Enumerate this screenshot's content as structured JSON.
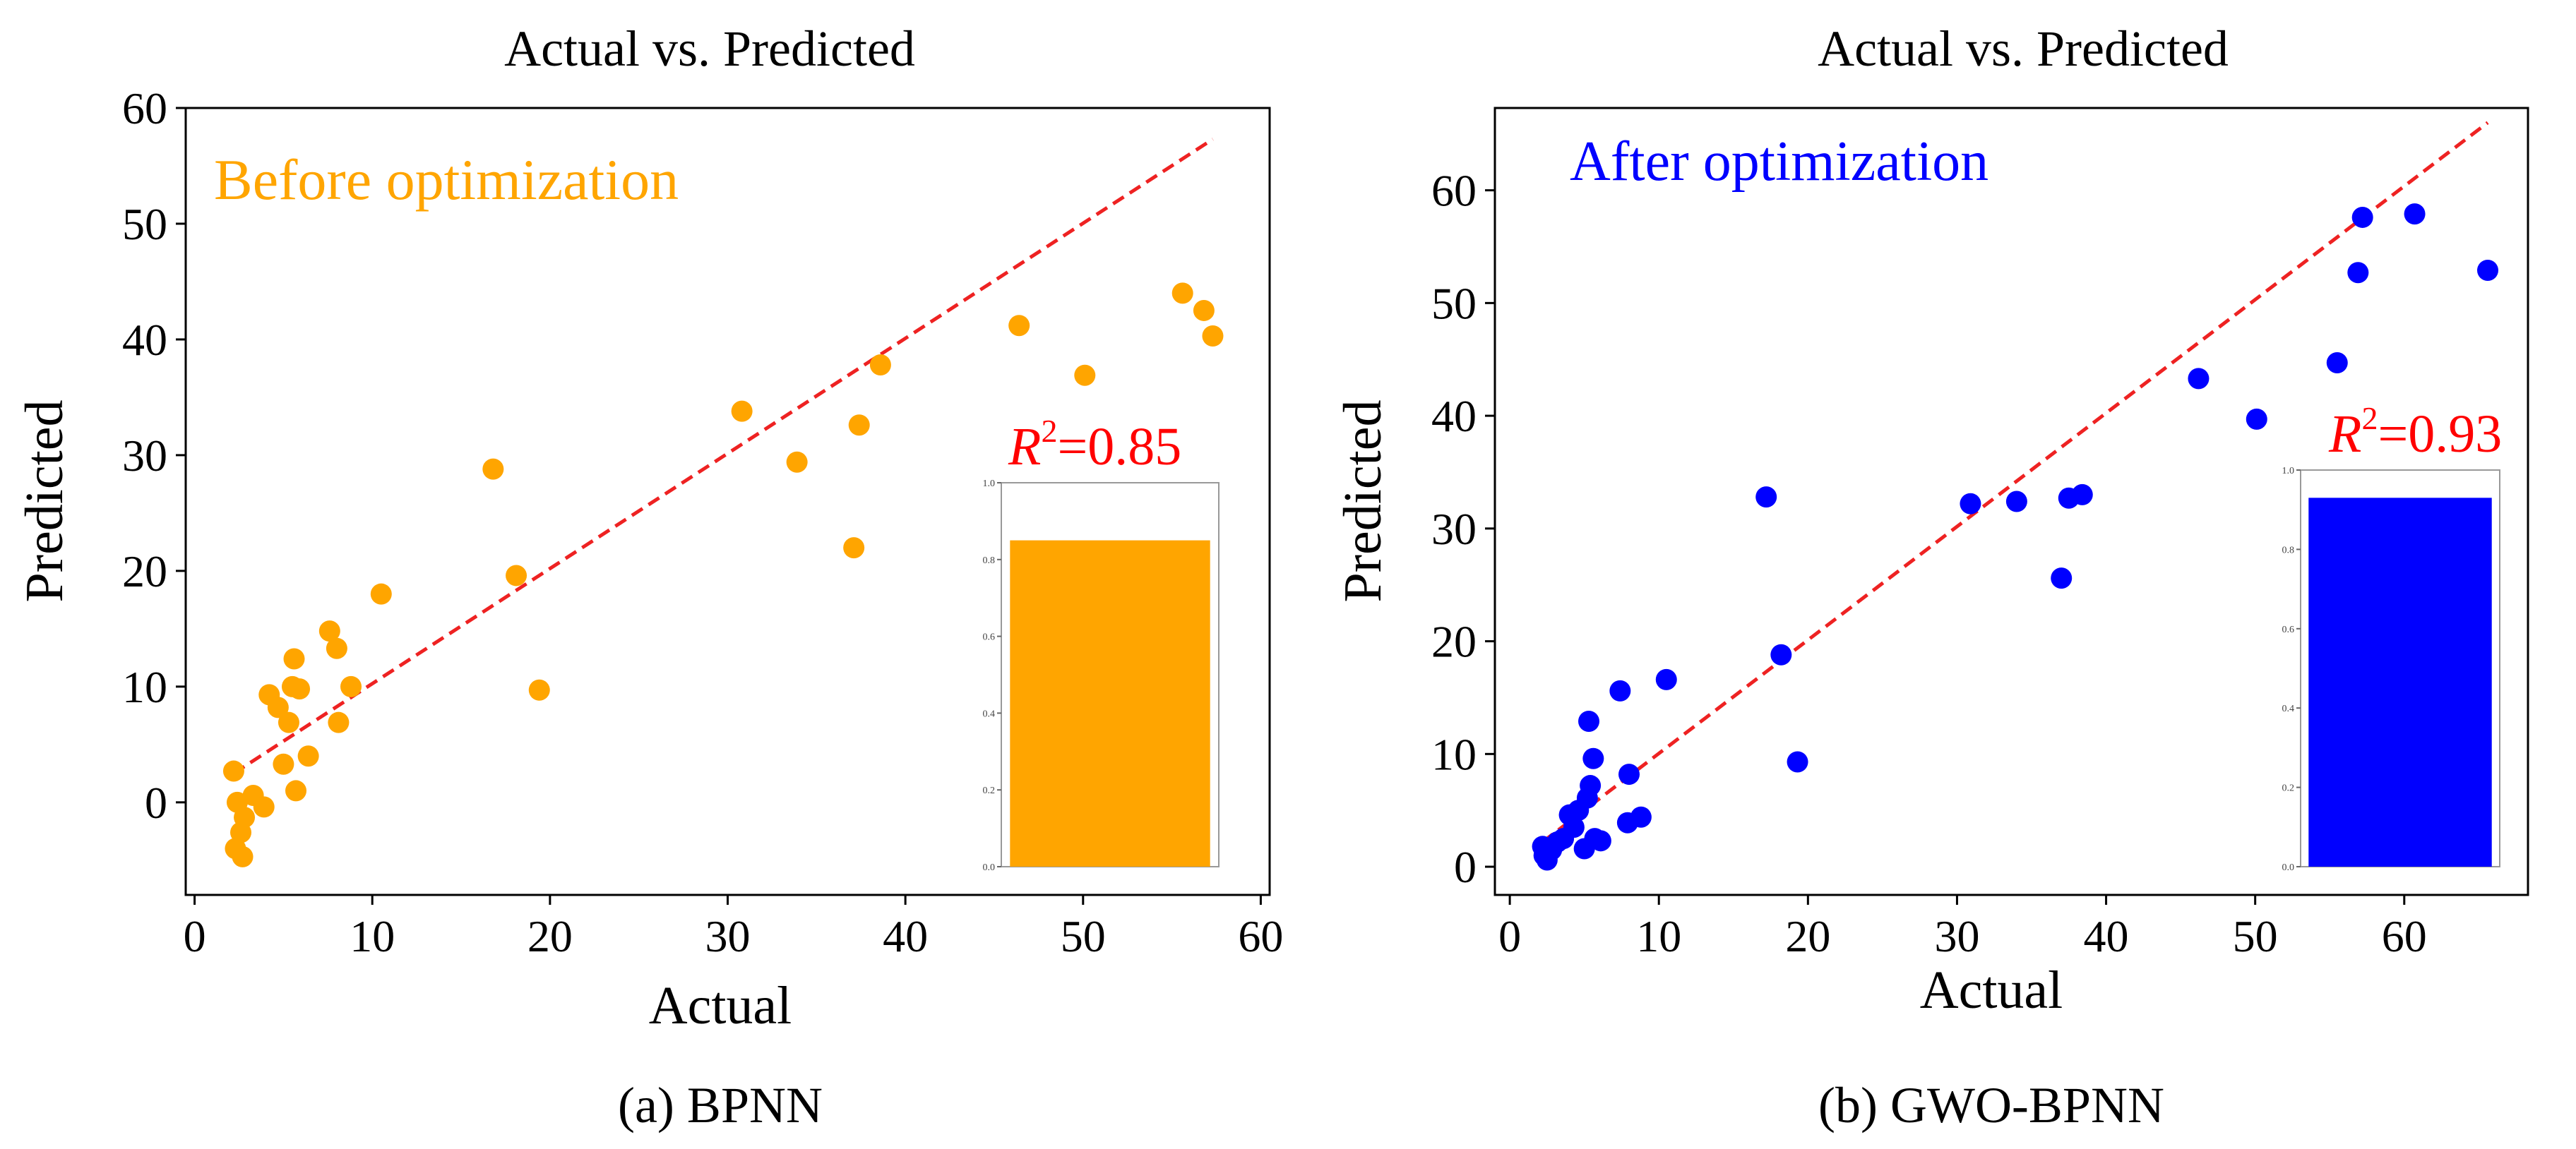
{
  "chart_data": [
    {
      "id": "a",
      "type": "scatter",
      "title": "Actual vs. Predicted",
      "xlabel": "Actual",
      "ylabel": "Predicted",
      "xlim": [
        -0.5,
        60.5
      ],
      "ylim": [
        -8,
        60
      ],
      "xticks": [
        "0",
        "10",
        "20",
        "30",
        "40",
        "50",
        "60"
      ],
      "xtick_values": [
        0,
        10,
        20,
        30,
        40,
        50,
        60
      ],
      "yticks": [
        "0",
        "10",
        "20",
        "30",
        "40",
        "50",
        "60"
      ],
      "ytick_values": [
        0,
        10,
        20,
        30,
        40,
        50,
        60
      ],
      "annotation": "Before optimization",
      "point_color": "#FFA500",
      "annotation_color": "#FFA500",
      "fit_line_color": "#EE2222",
      "fit_line": [
        [
          2.2,
          2.5
        ],
        [
          57.3,
          57.3
        ]
      ],
      "points": [
        [
          2.2,
          2.7
        ],
        [
          2.3,
          -4.0
        ],
        [
          2.4,
          0.0
        ],
        [
          2.6,
          -2.6
        ],
        [
          2.7,
          -4.7
        ],
        [
          2.8,
          -1.3
        ],
        [
          3.3,
          0.6
        ],
        [
          3.9,
          -0.4
        ],
        [
          4.2,
          9.3
        ],
        [
          4.7,
          8.2
        ],
        [
          5.0,
          3.3
        ],
        [
          5.3,
          6.9
        ],
        [
          5.5,
          10.0
        ],
        [
          5.6,
          12.4
        ],
        [
          5.7,
          1.0
        ],
        [
          5.9,
          9.8
        ],
        [
          6.4,
          4.0
        ],
        [
          7.6,
          14.8
        ],
        [
          8.0,
          13.3
        ],
        [
          8.1,
          6.9
        ],
        [
          8.8,
          10.0
        ],
        [
          10.5,
          18.0
        ],
        [
          16.8,
          28.8
        ],
        [
          18.1,
          19.6
        ],
        [
          19.4,
          9.7
        ],
        [
          30.8,
          33.8
        ],
        [
          33.9,
          29.4
        ],
        [
          37.1,
          22.0
        ],
        [
          37.4,
          32.6
        ],
        [
          38.6,
          37.8
        ],
        [
          46.4,
          41.2
        ],
        [
          50.1,
          36.9
        ],
        [
          55.6,
          44.0
        ],
        [
          56.8,
          42.5
        ],
        [
          57.3,
          40.3
        ]
      ],
      "inset": {
        "label_prefix": "R",
        "label_sup": "2",
        "label_suffix": "=0.85",
        "label_color": "#FF0000",
        "value": 0.85,
        "bar_color": "#FFA500",
        "yticks": [
          "0.0",
          "0.2",
          "0.4",
          "0.6",
          "0.8",
          "1.0"
        ]
      },
      "caption_letter": "(a)",
      "caption_text": " BPNN"
    },
    {
      "id": "b",
      "type": "scatter",
      "title": "Actual vs. Predicted",
      "xlabel": "Actual",
      "ylabel": "Predicted",
      "xlim": [
        -1,
        68.3
      ],
      "ylim": [
        -2.5,
        67.3
      ],
      "xticks": [
        "0",
        "10",
        "20",
        "30",
        "40",
        "50",
        "60"
      ],
      "xtick_values": [
        0,
        10,
        20,
        30,
        40,
        50,
        60
      ],
      "yticks": [
        "0",
        "10",
        "20",
        "30",
        "40",
        "50",
        "60"
      ],
      "ytick_values": [
        0,
        10,
        20,
        30,
        40,
        50,
        60
      ],
      "annotation": "After optimization",
      "point_color": "#0000FF",
      "annotation_color": "#0000FF",
      "fit_line_color": "#EE2222",
      "fit_line": [
        [
          2.2,
          2.2
        ],
        [
          65.6,
          66.0
        ]
      ],
      "points": [
        [
          2.2,
          1.8
        ],
        [
          2.3,
          1.0
        ],
        [
          2.5,
          0.6
        ],
        [
          2.8,
          1.5
        ],
        [
          3.2,
          2.2
        ],
        [
          3.6,
          2.5
        ],
        [
          4.0,
          4.6
        ],
        [
          4.3,
          3.5
        ],
        [
          4.6,
          5.0
        ],
        [
          5.0,
          1.6
        ],
        [
          5.2,
          6.1
        ],
        [
          5.3,
          12.9
        ],
        [
          5.4,
          7.2
        ],
        [
          5.6,
          9.6
        ],
        [
          5.7,
          2.5
        ],
        [
          6.1,
          2.3
        ],
        [
          7.4,
          15.6
        ],
        [
          7.9,
          3.9
        ],
        [
          8.0,
          8.2
        ],
        [
          8.8,
          4.4
        ],
        [
          10.5,
          16.6
        ],
        [
          17.2,
          32.8
        ],
        [
          18.2,
          18.8
        ],
        [
          19.3,
          9.3
        ],
        [
          30.9,
          32.2
        ],
        [
          34.0,
          32.4
        ],
        [
          37.0,
          25.6
        ],
        [
          37.5,
          32.7
        ],
        [
          38.4,
          33.0
        ],
        [
          46.2,
          43.3
        ],
        [
          50.1,
          39.7
        ],
        [
          55.5,
          44.7
        ],
        [
          56.9,
          52.7
        ],
        [
          57.2,
          57.6
        ],
        [
          60.7,
          57.9
        ],
        [
          65.6,
          52.9
        ]
      ],
      "inset": {
        "label_prefix": "R",
        "label_sup": "2",
        "label_suffix": "=0.93",
        "label_color": "#FF0000",
        "value": 0.93,
        "bar_color": "#0000FF",
        "yticks": [
          "0.0",
          "0.2",
          "0.4",
          "0.6",
          "0.8",
          "1.0"
        ]
      },
      "caption_letter": "(b)",
      "caption_text": " GWO-BPNN"
    }
  ]
}
